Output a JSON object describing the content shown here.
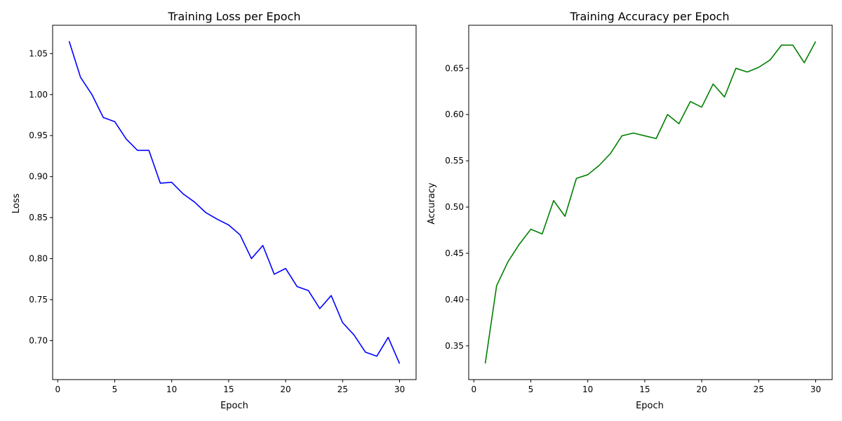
{
  "chart_data": [
    {
      "type": "line",
      "title": "Training Loss per Epoch",
      "xlabel": "Epoch",
      "ylabel": "Loss",
      "xlim": [
        -0.45,
        31.45
      ],
      "ylim": [
        0.6525,
        1.0845
      ],
      "xticks": [
        0,
        5,
        10,
        15,
        20,
        25,
        30
      ],
      "yticks": [
        0.7,
        0.75,
        0.8,
        0.85,
        0.9,
        0.95,
        1.0,
        1.05
      ],
      "ytick_labels": [
        "0.70",
        "0.75",
        "0.80",
        "0.85",
        "0.90",
        "0.95",
        "1.00",
        "1.05"
      ],
      "grid": false,
      "color": "#0000ff",
      "x": [
        1,
        2,
        3,
        4,
        5,
        6,
        7,
        8,
        9,
        10,
        11,
        12,
        13,
        14,
        15,
        16,
        17,
        18,
        19,
        20,
        21,
        22,
        23,
        24,
        25,
        26,
        27,
        28,
        29,
        30
      ],
      "values": [
        1.065,
        1.021,
        1.0,
        0.972,
        0.967,
        0.946,
        0.932,
        0.932,
        0.892,
        0.893,
        0.879,
        0.869,
        0.856,
        0.848,
        0.841,
        0.829,
        0.8,
        0.816,
        0.781,
        0.788,
        0.766,
        0.761,
        0.739,
        0.755,
        0.722,
        0.707,
        0.686,
        0.681,
        0.704,
        0.672
      ]
    },
    {
      "type": "line",
      "title": "Training Accuracy per Epoch",
      "xlabel": "Epoch",
      "ylabel": "Accuracy",
      "xlim": [
        -0.45,
        31.45
      ],
      "ylim": [
        0.3135,
        0.6965
      ],
      "xticks": [
        0,
        5,
        10,
        15,
        20,
        25,
        30
      ],
      "yticks": [
        0.35,
        0.4,
        0.45,
        0.5,
        0.55,
        0.6,
        0.65
      ],
      "ytick_labels": [
        "0.35",
        "0.40",
        "0.45",
        "0.50",
        "0.55",
        "0.60",
        "0.65"
      ],
      "grid": false,
      "color": "#008000",
      "x": [
        1,
        2,
        3,
        4,
        5,
        6,
        7,
        8,
        9,
        10,
        11,
        12,
        13,
        14,
        15,
        16,
        17,
        18,
        19,
        20,
        21,
        22,
        23,
        24,
        25,
        26,
        27,
        28,
        29,
        30
      ],
      "values": [
        0.331,
        0.415,
        0.441,
        0.46,
        0.476,
        0.471,
        0.507,
        0.49,
        0.531,
        0.535,
        0.545,
        0.558,
        0.577,
        0.58,
        0.577,
        0.574,
        0.6,
        0.59,
        0.614,
        0.608,
        0.633,
        0.619,
        0.65,
        0.646,
        0.651,
        0.659,
        0.675,
        0.675,
        0.656,
        0.679
      ]
    }
  ]
}
